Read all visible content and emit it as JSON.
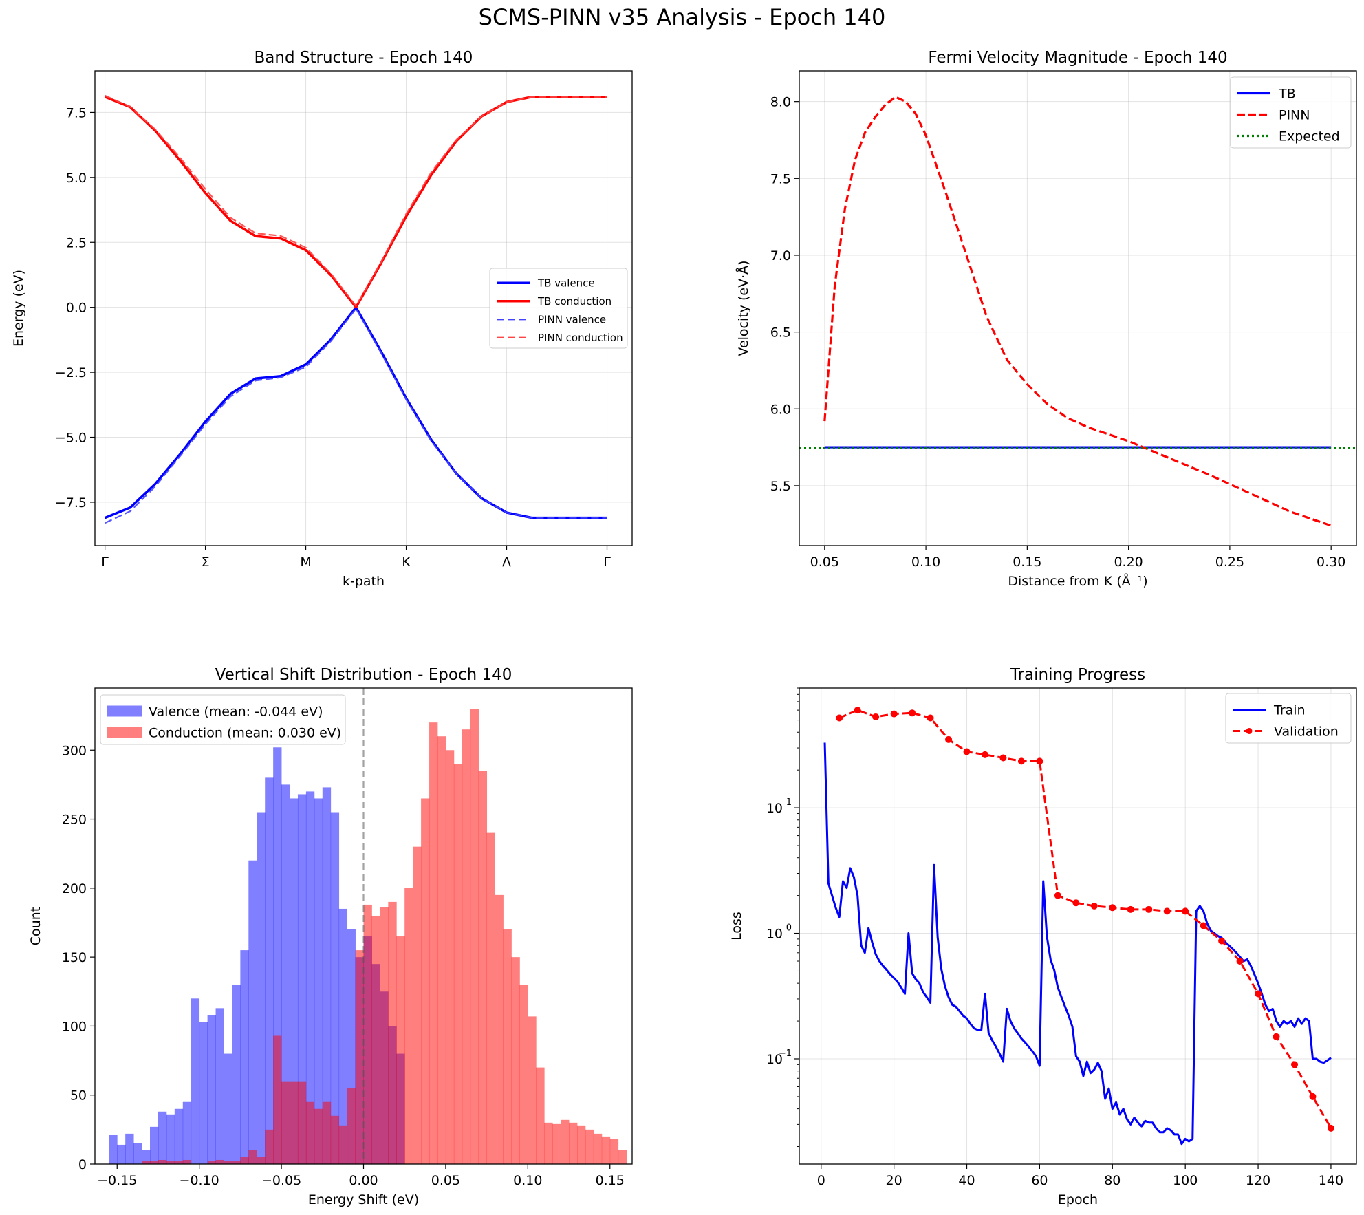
{
  "figure_title": "SCMS-PINN v35 Analysis - Epoch 140",
  "chart_data": [
    {
      "id": "band",
      "type": "line",
      "title": "Band Structure - Epoch 140",
      "xlabel": "k-path",
      "ylabel": "Energy (eV)",
      "xticklabels": [
        "Γ",
        "Σ",
        "M",
        "K",
        "Λ",
        "Γ"
      ],
      "xlim": [
        -0.1,
        5.25
      ],
      "ylim": [
        -9.17,
        9.1
      ],
      "yticks": [
        -7.5,
        -5.0,
        -2.5,
        0.0,
        2.5,
        5.0,
        7.5
      ],
      "yticklabels": [
        "−7.5",
        "−5.0",
        "−2.5",
        "0.0",
        "2.5",
        "5.0",
        "7.5"
      ],
      "grid": true,
      "legend_position": "center-right",
      "x": [
        0,
        0.25,
        0.5,
        0.75,
        1,
        1.25,
        1.5,
        1.75,
        2,
        2.25,
        2.5,
        2.75,
        3,
        3.25,
        3.5,
        3.75,
        4,
        4.25,
        4.5,
        4.75,
        5
      ],
      "series": [
        {
          "name": "TB valence",
          "color": "#0000ff",
          "dash": "solid",
          "values": [
            -8.1,
            -7.71,
            -6.8,
            -5.64,
            -4.4,
            -3.33,
            -2.74,
            -2.65,
            -2.2,
            -1.24,
            0,
            -1.7,
            -3.5,
            -5.1,
            -6.4,
            -7.35,
            -7.9,
            -8.1,
            -8.1,
            -8.1,
            -8.1
          ]
        },
        {
          "name": "TB conduction",
          "color": "#ff0000",
          "dash": "solid",
          "values": [
            8.1,
            7.71,
            6.8,
            5.64,
            4.4,
            3.33,
            2.74,
            2.65,
            2.2,
            1.24,
            0,
            1.7,
            3.5,
            5.1,
            6.4,
            7.35,
            7.9,
            8.1,
            8.1,
            8.1,
            8.1
          ]
        },
        {
          "name": "PINN valence",
          "color": "#4444ff",
          "dash": "dashed",
          "values": [
            -8.3,
            -7.85,
            -6.9,
            -5.72,
            -4.5,
            -3.43,
            -2.82,
            -2.7,
            -2.3,
            -1.3,
            -0.05,
            -1.75,
            -3.55,
            -5.15,
            -6.4,
            -7.35,
            -7.9,
            -8.1,
            -8.1,
            -8.1,
            -8.1
          ]
        },
        {
          "name": "PINN conduction",
          "color": "#ff4444",
          "dash": "dashed",
          "values": [
            8.15,
            7.72,
            6.85,
            5.75,
            4.55,
            3.45,
            2.85,
            2.75,
            2.3,
            1.3,
            0.05,
            1.75,
            3.6,
            5.2,
            6.45,
            7.35,
            7.9,
            8.1,
            8.1,
            8.1,
            8.1
          ]
        }
      ]
    },
    {
      "id": "fermi",
      "type": "line",
      "title": "Fermi Velocity Magnitude - Epoch 140",
      "xlabel": "Distance from K (Å⁻¹)",
      "ylabel": "Velocity (eV·Å)",
      "xlim": [
        0.0375,
        0.3125
      ],
      "ylim": [
        5.11,
        8.2
      ],
      "xticks": [
        0.05,
        0.1,
        0.15,
        0.2,
        0.25,
        0.3
      ],
      "xticklabels": [
        "0.05",
        "0.10",
        "0.15",
        "0.20",
        "0.25",
        "0.30"
      ],
      "yticks": [
        5.5,
        6.0,
        6.5,
        7.0,
        7.5,
        8.0
      ],
      "yticklabels": [
        "5.5",
        "6.0",
        "6.5",
        "7.0",
        "7.5",
        "8.0"
      ],
      "grid": true,
      "legend_position": "top-right",
      "series": [
        {
          "name": "TB",
          "color": "#0000ff",
          "dash": "solid",
          "x": [
            0.05,
            0.3
          ],
          "values": [
            5.75,
            5.75
          ]
        },
        {
          "name": "PINN",
          "color": "#ff0000",
          "dash": "dashed",
          "x": [
            0.05,
            0.055,
            0.06,
            0.065,
            0.07,
            0.075,
            0.08,
            0.085,
            0.09,
            0.095,
            0.1,
            0.11,
            0.12,
            0.13,
            0.14,
            0.15,
            0.16,
            0.17,
            0.18,
            0.2,
            0.22,
            0.24,
            0.26,
            0.28,
            0.3
          ],
          "values": [
            5.92,
            6.8,
            7.3,
            7.62,
            7.8,
            7.9,
            7.98,
            8.03,
            8.0,
            7.92,
            7.78,
            7.4,
            7.0,
            6.6,
            6.32,
            6.16,
            6.03,
            5.94,
            5.88,
            5.79,
            5.68,
            5.57,
            5.45,
            5.33,
            5.24
          ]
        },
        {
          "name": "Expected",
          "color": "#008000",
          "dash": "dotted",
          "full_width": true,
          "x": [
            0.0375,
            0.3125
          ],
          "values": [
            5.745,
            5.745
          ]
        }
      ]
    },
    {
      "id": "hist",
      "type": "bar",
      "title": "Vertical Shift Distribution - Epoch 140",
      "xlabel": "Energy Shift (eV)",
      "ylabel": "Count",
      "xlim": [
        -0.1635,
        0.1635
      ],
      "ylim": [
        0,
        345
      ],
      "xticks": [
        -0.15,
        -0.1,
        -0.05,
        0.0,
        0.05,
        0.1,
        0.15
      ],
      "xticklabels": [
        "−0.15",
        "−0.10",
        "−0.05",
        "0.00",
        "0.05",
        "0.10",
        "0.15"
      ],
      "yticks": [
        0,
        50,
        100,
        150,
        200,
        250,
        300
      ],
      "yticklabels": [
        "0",
        "50",
        "100",
        "150",
        "200",
        "250",
        "300"
      ],
      "grid": false,
      "legend_position": "top-left",
      "vline": 0,
      "bins_start": -0.155,
      "bin_width": 0.005,
      "series": [
        {
          "name": "Valence (mean: -0.044 eV)",
          "color": "#0000ff",
          "opacity": 0.5,
          "values": [
            21,
            14,
            22,
            15,
            10,
            27,
            38,
            36,
            40,
            45,
            120,
            103,
            108,
            113,
            80,
            130,
            155,
            220,
            255,
            280,
            302,
            275,
            265,
            268,
            270,
            265,
            273,
            255,
            185,
            170,
            150,
            165,
            145,
            125,
            100,
            80,
            0,
            0,
            0,
            0,
            0,
            0,
            0,
            0,
            0,
            0,
            0,
            0,
            0,
            0,
            0,
            0,
            0,
            0,
            0,
            0,
            0,
            0,
            0,
            0
          ]
        },
        {
          "name": "Conduction (mean: 0.030 eV)",
          "color": "#ff0000",
          "opacity": 0.5,
          "values": [
            0,
            0,
            0,
            0,
            2,
            2,
            3,
            2,
            2,
            3,
            0,
            0,
            2,
            3,
            2,
            2,
            5,
            10,
            5,
            25,
            93,
            60,
            60,
            60,
            45,
            40,
            45,
            35,
            28,
            55,
            155,
            188,
            180,
            186,
            190,
            165,
            200,
            230,
            265,
            320,
            310,
            300,
            290,
            315,
            330,
            285,
            240,
            195,
            170,
            150,
            130,
            107,
            70,
            30,
            29,
            32,
            30,
            28,
            25,
            22,
            20,
            18,
            10
          ]
        }
      ]
    },
    {
      "id": "loss",
      "type": "line",
      "title": "Training Progress",
      "xlabel": "Epoch",
      "ylabel": "Loss",
      "yscale": "log",
      "xlim": [
        -6,
        147
      ],
      "ylim": [
        0.0145,
        90
      ],
      "xticks": [
        0,
        20,
        40,
        60,
        80,
        100,
        120,
        140
      ],
      "xticklabels": [
        "0",
        "20",
        "40",
        "60",
        "80",
        "100",
        "120",
        "140"
      ],
      "yticks": [
        0.1,
        1,
        10
      ],
      "yticklabels": [
        "10",
        "10",
        "10"
      ],
      "ytick_exponents": [
        "−1",
        "0",
        "1"
      ],
      "grid": true,
      "legend_position": "top-right",
      "series": [
        {
          "name": "Train",
          "color": "#0000ff",
          "dash": "solid",
          "marker": "none",
          "x": [
            1,
            2,
            3,
            4,
            5,
            6,
            7,
            8,
            9,
            10,
            11,
            12,
            13,
            14,
            15,
            16,
            17,
            18,
            19,
            20,
            21,
            22,
            23,
            24,
            25,
            26,
            27,
            28,
            29,
            30,
            31,
            32,
            33,
            34,
            35,
            36,
            37,
            38,
            39,
            40,
            41,
            42,
            43,
            44,
            45,
            46,
            47,
            48,
            49,
            50,
            51,
            52,
            53,
            54,
            55,
            56,
            57,
            58,
            59,
            60,
            61,
            62,
            63,
            64,
            65,
            66,
            67,
            68,
            69,
            70,
            71,
            72,
            73,
            74,
            75,
            76,
            77,
            78,
            79,
            80,
            81,
            82,
            83,
            84,
            85,
            86,
            87,
            88,
            89,
            90,
            91,
            92,
            93,
            94,
            95,
            96,
            97,
            98,
            99,
            100,
            101,
            102,
            103,
            104,
            105,
            106,
            107,
            108,
            109,
            110,
            111,
            112,
            113,
            114,
            115,
            116,
            117,
            118,
            119,
            120,
            121,
            122,
            123,
            124,
            125,
            126,
            127,
            128,
            129,
            130,
            131,
            132,
            133,
            134,
            135,
            136,
            137,
            138,
            139,
            140
          ],
          "values": [
            33,
            2.5,
            2.0,
            1.6,
            1.35,
            2.6,
            2.3,
            3.3,
            2.8,
            2.0,
            0.8,
            0.7,
            1.1,
            0.85,
            0.68,
            0.6,
            0.55,
            0.51,
            0.47,
            0.44,
            0.41,
            0.37,
            0.33,
            1.0,
            0.48,
            0.43,
            0.4,
            0.34,
            0.31,
            0.28,
            3.5,
            0.93,
            0.52,
            0.38,
            0.31,
            0.27,
            0.26,
            0.24,
            0.22,
            0.21,
            0.19,
            0.175,
            0.17,
            0.17,
            0.33,
            0.16,
            0.14,
            0.125,
            0.11,
            0.095,
            0.25,
            0.2,
            0.175,
            0.16,
            0.145,
            0.135,
            0.125,
            0.115,
            0.105,
            0.088,
            2.6,
            0.94,
            0.62,
            0.51,
            0.37,
            0.31,
            0.26,
            0.22,
            0.18,
            0.105,
            0.095,
            0.073,
            0.095,
            0.077,
            0.082,
            0.093,
            0.08,
            0.048,
            0.058,
            0.04,
            0.045,
            0.036,
            0.04,
            0.033,
            0.03,
            0.034,
            0.031,
            0.029,
            0.032,
            0.031,
            0.031,
            0.028,
            0.026,
            0.026,
            0.028,
            0.027,
            0.025,
            0.025,
            0.021,
            0.023,
            0.022,
            0.023,
            1.5,
            1.65,
            1.5,
            1.2,
            1.05,
            1.0,
            0.95,
            0.92,
            0.85,
            0.8,
            0.75,
            0.7,
            0.65,
            0.6,
            0.62,
            0.55,
            0.47,
            0.4,
            0.33,
            0.27,
            0.24,
            0.25,
            0.2,
            0.18,
            0.2,
            0.19,
            0.2,
            0.18,
            0.21,
            0.19,
            0.21,
            0.2,
            0.1,
            0.1,
            0.095,
            0.093,
            0.097,
            0.102
          ]
        },
        {
          "name": "Validation",
          "color": "#ff0000",
          "dash": "dashed",
          "marker": "circle",
          "x": [
            5,
            10,
            15,
            20,
            25,
            30,
            35,
            40,
            45,
            50,
            55,
            60,
            65,
            70,
            75,
            80,
            85,
            90,
            95,
            100,
            105,
            110,
            115,
            120,
            125,
            130,
            135,
            140
          ],
          "values": [
            52,
            60,
            53,
            56,
            57,
            52,
            35,
            28,
            26.5,
            25,
            23.5,
            23.5,
            2.0,
            1.75,
            1.65,
            1.6,
            1.55,
            1.55,
            1.5,
            1.5,
            1.15,
            0.87,
            0.6,
            0.33,
            0.15,
            0.09,
            0.05,
            0.028
          ]
        }
      ]
    }
  ]
}
